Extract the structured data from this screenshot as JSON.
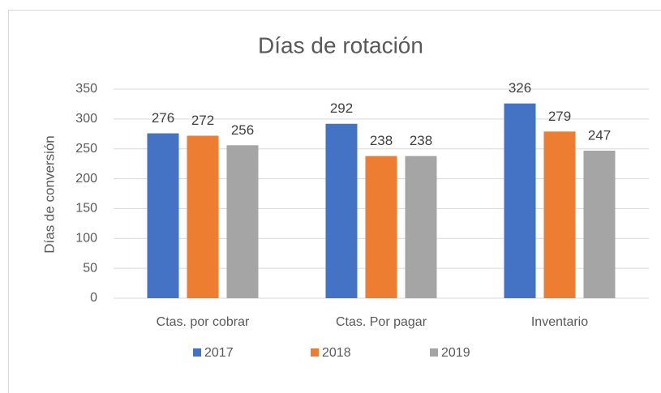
{
  "chart_data": {
    "type": "bar",
    "title": "Días de rotación",
    "y_label": "Días de conversión",
    "categories": [
      "Ctas. por cobrar",
      "Ctas. Por pagar",
      "Inventario"
    ],
    "series": [
      {
        "name": "2017",
        "color": "#4472c4",
        "values": [
          276,
          292,
          326
        ]
      },
      {
        "name": "2018",
        "color": "#ed7d31",
        "values": [
          272,
          238,
          279
        ]
      },
      {
        "name": "2019",
        "color": "#a5a5a5",
        "values": [
          256,
          238,
          247
        ]
      }
    ],
    "ylim": [
      0,
      350
    ],
    "yticks": [
      0,
      50,
      100,
      150,
      200,
      250,
      300,
      350
    ],
    "grid": true,
    "legend": "bottom"
  }
}
